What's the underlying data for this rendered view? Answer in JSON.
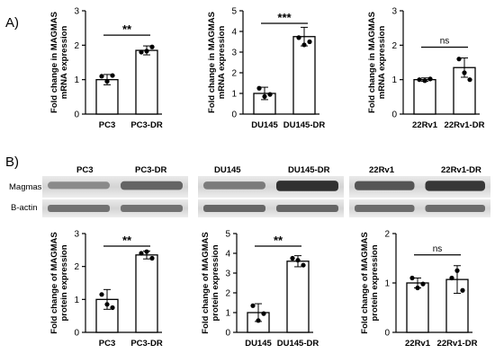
{
  "panels": {
    "a": "A)",
    "b": "B)"
  },
  "blot": {
    "row_labels": [
      "Magmas",
      "B-actin"
    ],
    "groups": [
      {
        "headers": [
          "PC3",
          "PC3-DR"
        ]
      },
      {
        "headers": [
          "DU145",
          "DU145-DR"
        ]
      },
      {
        "headers": [
          "22Rv1",
          "22Rv1-DR"
        ]
      }
    ]
  },
  "chart_data": [
    {
      "type": "bar",
      "panel": "A",
      "categories": [
        "PC3",
        "PC3-DR"
      ],
      "values": [
        1.0,
        1.85
      ],
      "errors": [
        0.15,
        0.13
      ],
      "points": [
        [
          1.1,
          0.95,
          1.12
        ],
        [
          1.8,
          1.83,
          1.95
        ]
      ],
      "ylabel": "Fold change in MAGMAS\nmRNA expression",
      "ylim": [
        0,
        3
      ],
      "yticks": [
        0,
        1,
        2,
        3
      ],
      "significance": "**"
    },
    {
      "type": "bar",
      "panel": "A",
      "categories": [
        "DU145",
        "DU145-DR"
      ],
      "values": [
        1.0,
        3.75
      ],
      "errors": [
        0.3,
        0.45
      ],
      "points": [
        [
          1.25,
          0.85,
          0.95
        ],
        [
          3.7,
          3.35,
          3.5
        ]
      ],
      "ylabel": "Fold change in MAGMAS\nmRNA expression",
      "ylim": [
        0,
        5
      ],
      "yticks": [
        0,
        1,
        2,
        3,
        4,
        5
      ],
      "significance": "***"
    },
    {
      "type": "bar",
      "panel": "A",
      "categories": [
        "22Rv1",
        "22Rv1-DR"
      ],
      "values": [
        1.0,
        1.35
      ],
      "errors": [
        0.05,
        0.28
      ],
      "points": [
        [
          1.0,
          0.97,
          1.02
        ],
        [
          1.6,
          1.2,
          1.0
        ]
      ],
      "ylabel": "Fold change in MAGMAS\nmRNA expression",
      "ylim": [
        0,
        3
      ],
      "yticks": [
        0,
        1,
        2,
        3
      ],
      "significance": "ns"
    },
    {
      "type": "bar",
      "panel": "B",
      "categories": [
        "PC3",
        "PC3-DR"
      ],
      "values": [
        1.0,
        2.35
      ],
      "errors": [
        0.3,
        0.12
      ],
      "points": [
        [
          1.15,
          0.85,
          0.75
        ],
        [
          2.4,
          2.45,
          2.25
        ]
      ],
      "ylabel": "Fold change of MAGMAS\nprotein expression",
      "ylim": [
        0,
        3
      ],
      "yticks": [
        0,
        1,
        2,
        3
      ],
      "significance": "**"
    },
    {
      "type": "bar",
      "panel": "B",
      "categories": [
        "DU145",
        "DU145-DR"
      ],
      "values": [
        1.0,
        3.6
      ],
      "errors": [
        0.45,
        0.28
      ],
      "points": [
        [
          1.35,
          0.6,
          0.95
        ],
        [
          3.75,
          3.65,
          3.4
        ]
      ],
      "ylabel": "Fold change of MAGMAS\nprotein expression",
      "ylim": [
        0,
        5
      ],
      "yticks": [
        0,
        1,
        2,
        3,
        4,
        5
      ],
      "significance": "**"
    },
    {
      "type": "bar",
      "panel": "B",
      "categories": [
        "22Rv1",
        "22Rv1-DR"
      ],
      "values": [
        1.0,
        1.07
      ],
      "errors": [
        0.1,
        0.28
      ],
      "points": [
        [
          1.1,
          0.9,
          0.98
        ],
        [
          1.1,
          1.25,
          0.85
        ]
      ],
      "ylabel": "Fold change of MAGMAS\nprotein expression",
      "ylim": [
        0,
        2
      ],
      "yticks": [
        0,
        1,
        2
      ],
      "significance": "ns"
    }
  ]
}
